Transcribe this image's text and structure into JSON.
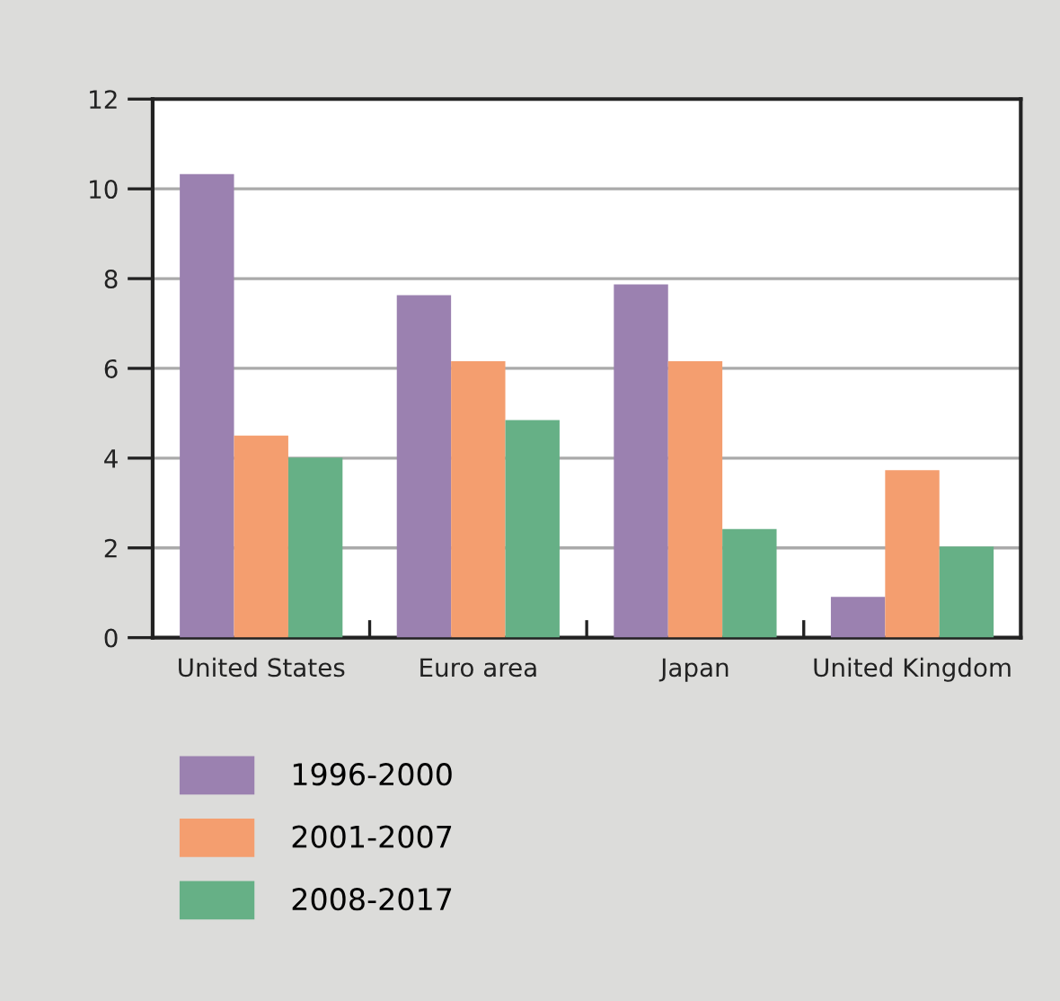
{
  "chart_data": {
    "type": "bar",
    "categories": [
      "United States",
      "Euro area",
      "Japan",
      "United Kingdom"
    ],
    "series": [
      {
        "name": "1996-2000",
        "color": "#9b81b0",
        "values": [
          10.33,
          7.63,
          7.87,
          0.91
        ]
      },
      {
        "name": "2001-2007",
        "color": "#f49e6f",
        "values": [
          4.5,
          6.16,
          6.16,
          3.73
        ]
      },
      {
        "name": "2008-2017",
        "color": "#66b086",
        "values": [
          4.01,
          4.85,
          2.42,
          2.03
        ]
      }
    ],
    "ylim": [
      0,
      12
    ],
    "yticks": [
      0,
      2,
      4,
      6,
      8,
      10,
      12
    ],
    "grid": "y",
    "legend": "bottom left"
  }
}
